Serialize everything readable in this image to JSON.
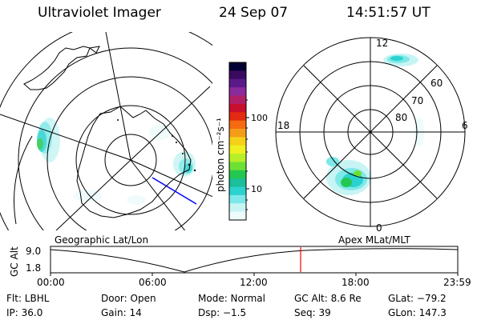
{
  "header": {
    "instrument": "Ultraviolet Imager",
    "date": "24 Sep 07",
    "time": "14:51:57 UT"
  },
  "geo_panel": {
    "label": "Geographic Lat/Lon"
  },
  "colorbar": {
    "unit_label": "photon cm⁻²s⁻¹",
    "ticks": [
      "100",
      "10"
    ],
    "scale": "log",
    "colors": [
      "#000033",
      "#3a0a5e",
      "#5b1a8c",
      "#8b2a9a",
      "#b0206a",
      "#c8102e",
      "#e22b10",
      "#f46a12",
      "#f59d19",
      "#f4d219",
      "#eef022",
      "#b8f028",
      "#6ee035",
      "#24c850",
      "#1bbf9a",
      "#2ad2d0",
      "#7ee8e8",
      "#c8f4f4",
      "#eefcfc"
    ]
  },
  "mag_panel": {
    "label": "Apex MLat/MLT",
    "mlt_labels": {
      "top": "12",
      "left": "18",
      "right": "6",
      "bottom": "0"
    },
    "mlat_labels": [
      "60",
      "70",
      "80"
    ]
  },
  "altitude_strip": {
    "ylabel": "GC Alt",
    "y_ticks": [
      "9.0",
      "1.8"
    ],
    "x_ticks": [
      "00:00",
      "06:00",
      "12:00",
      "18:00",
      "23:59"
    ],
    "current_time_marker": "14:51:57"
  },
  "info": {
    "row1": {
      "flt": "Flt: LBHL",
      "door": "Door: Open",
      "mode": "Mode: Normal",
      "gcalt": "GC Alt: 8.6 Re",
      "glat": "GLat: −79.2"
    },
    "row2": {
      "ip": "IP: 36.0",
      "gain": "Gain: 14",
      "dsp": "Dsp:  −1.5",
      "seq": "Seq: 39",
      "glon": "GLon: 147.3"
    }
  }
}
